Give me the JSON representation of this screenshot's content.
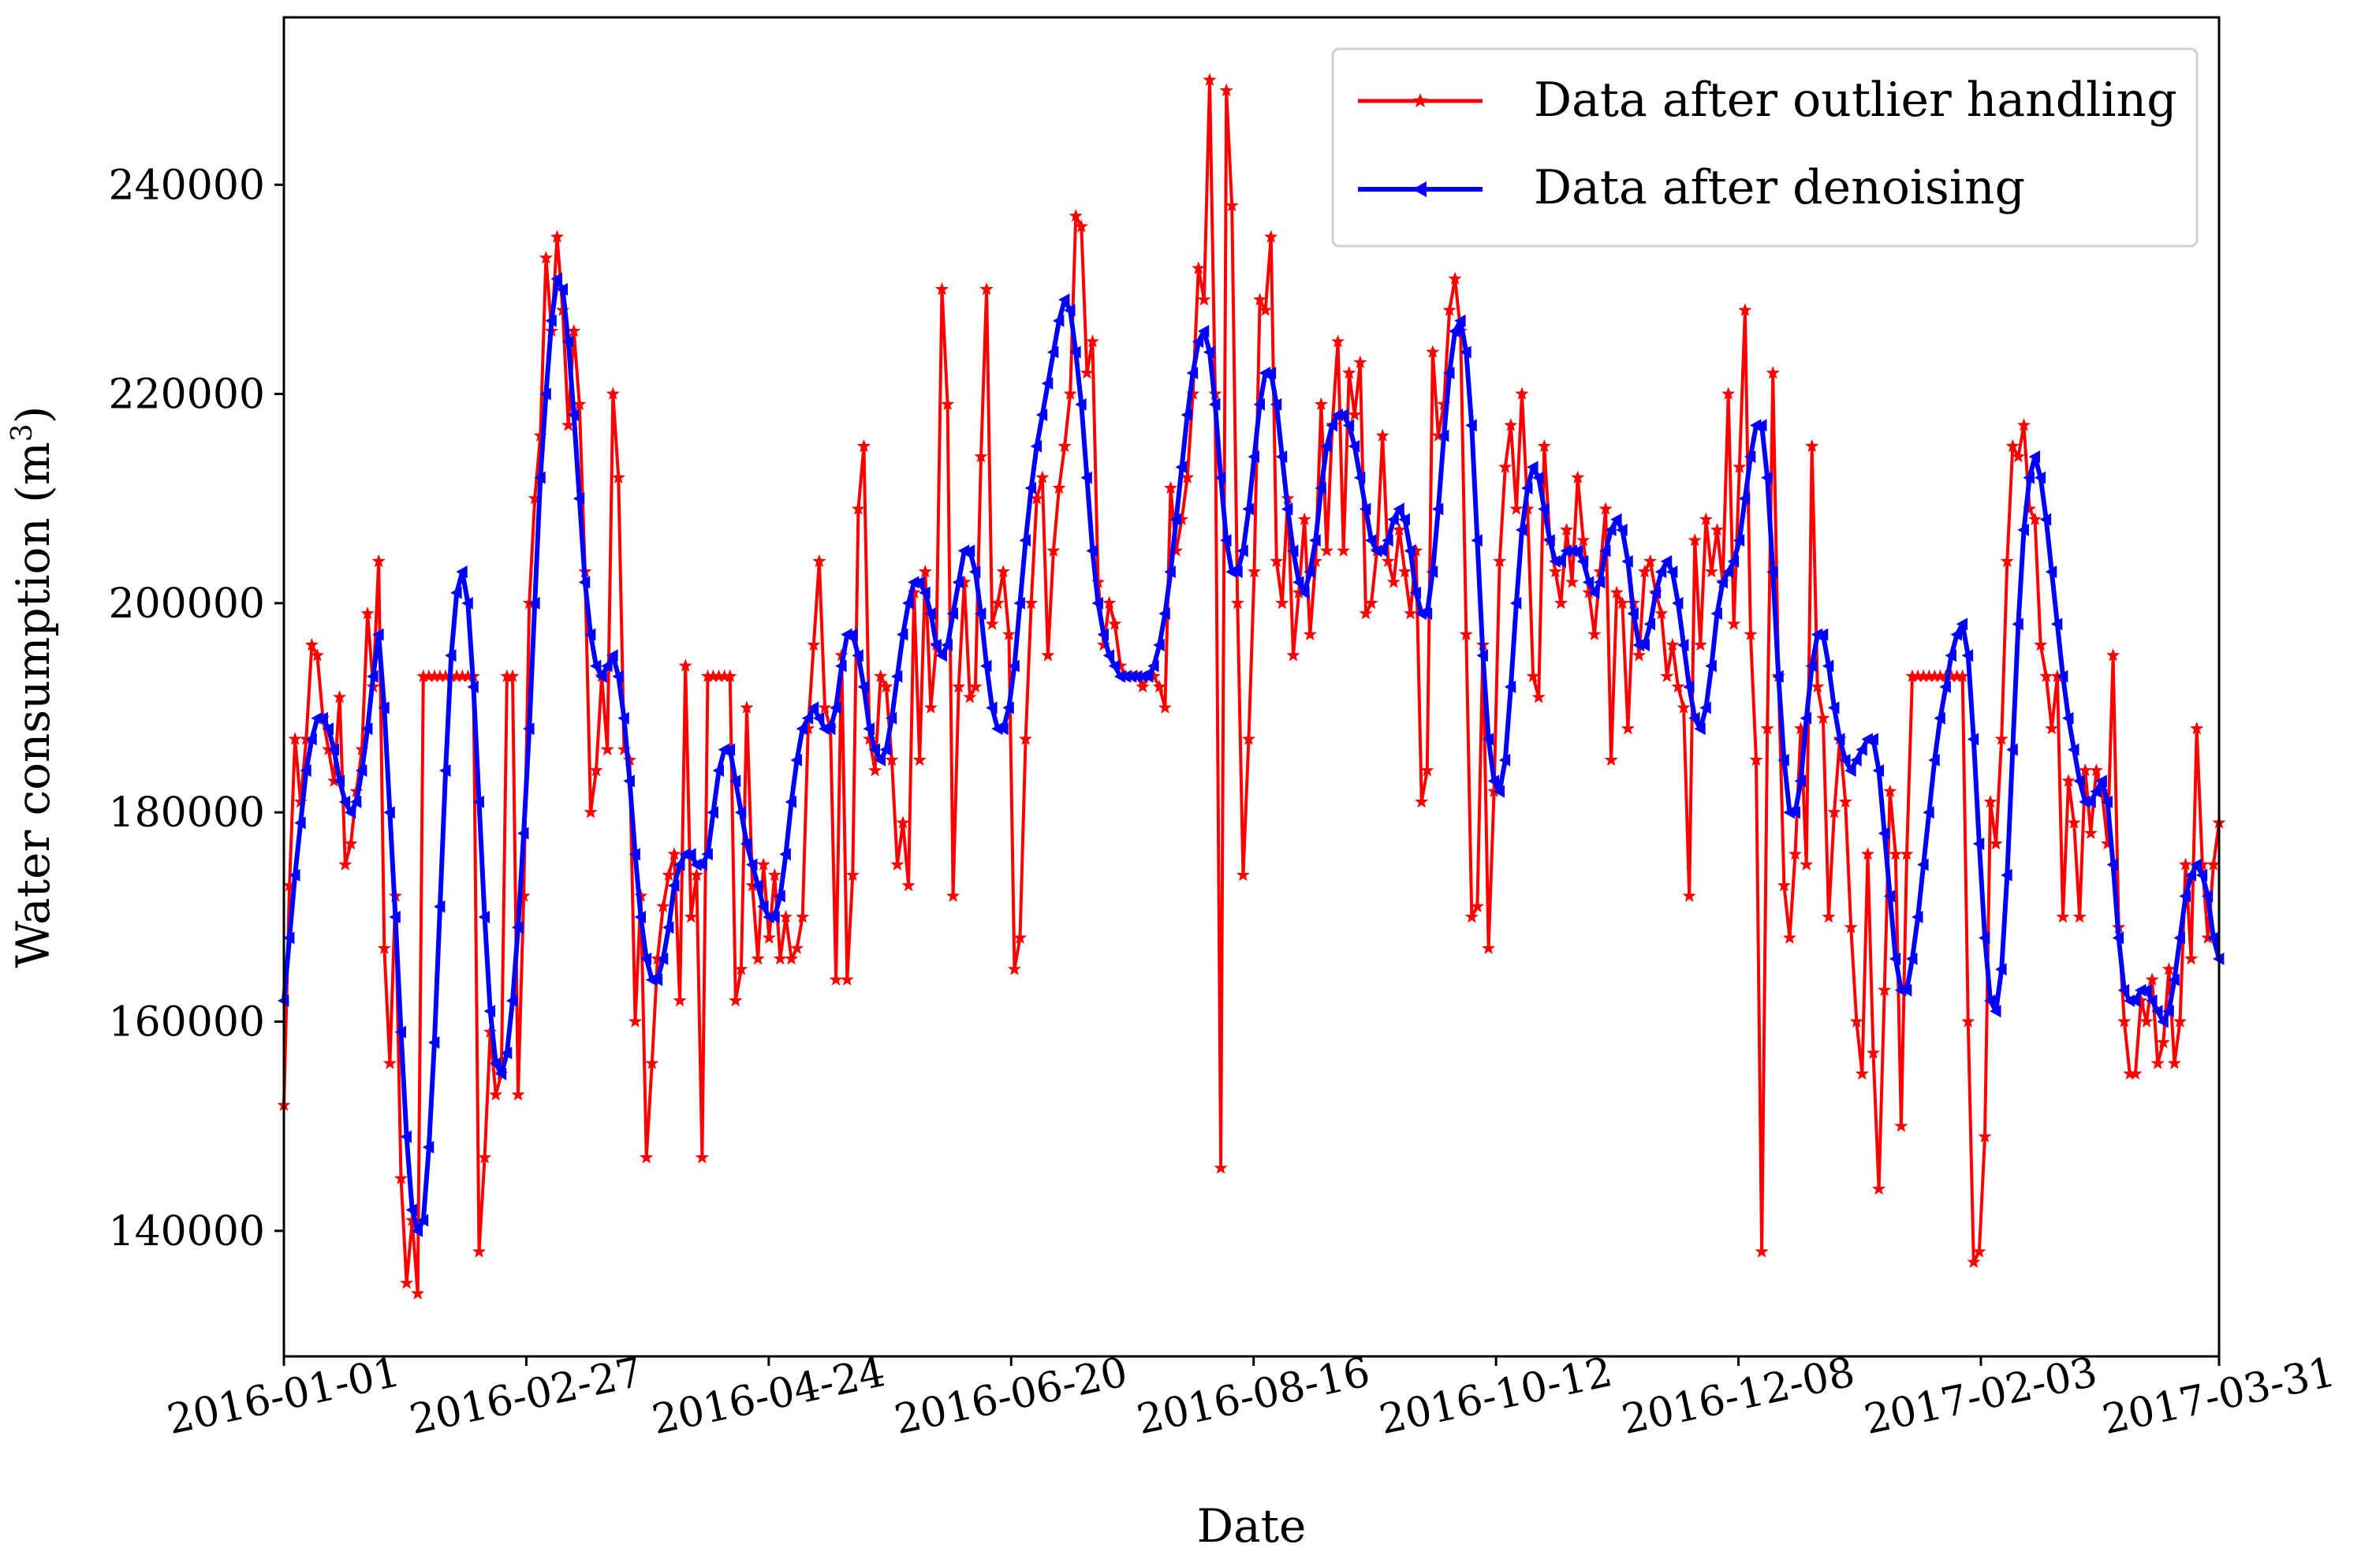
{
  "chart_data": {
    "type": "line",
    "title": "",
    "xlabel": "Date",
    "ylabel": "Water consumption (m³)",
    "ylabel_base": "Water consumption (m",
    "ylabel_sup": "3",
    "ylabel_close": ")",
    "x_start": "2016-01-01",
    "x_end": "2017-03-31",
    "xlim": [
      "2016-01-01",
      "2017-03-31"
    ],
    "ylim": [
      128000,
      256000
    ],
    "x_ticks": [
      "2016-01-01",
      "2016-02-27",
      "2016-04-24",
      "2016-06-20",
      "2016-08-16",
      "2016-10-12",
      "2016-12-08",
      "2017-02-03",
      "2017-03-31"
    ],
    "y_ticks": [
      140000,
      160000,
      180000,
      200000,
      220000,
      240000
    ],
    "y_tick_labels": [
      "140000",
      "160000",
      "180000",
      "200000",
      "220000",
      "240000"
    ],
    "grid": false,
    "legend_position": "top-right",
    "series": [
      {
        "name": "Data after outlier handling",
        "color": "#ff0000",
        "marker": "star",
        "values": [
          152000,
          173000,
          187000,
          181000,
          187000,
          196000,
          195000,
          189000,
          186000,
          183000,
          191000,
          175000,
          177000,
          182000,
          186000,
          199000,
          192000,
          204000,
          167000,
          156000,
          172000,
          145000,
          135000,
          141000,
          134000,
          193000,
          193000,
          193000,
          193000,
          193000,
          193000,
          193000,
          193000,
          193000,
          193000,
          138000,
          147000,
          159000,
          153000,
          155000,
          193000,
          193000,
          153000,
          172000,
          200000,
          210000,
          216000,
          233000,
          226000,
          235000,
          228000,
          217000,
          226000,
          219000,
          203000,
          180000,
          184000,
          193000,
          186000,
          220000,
          212000,
          186000,
          185000,
          160000,
          172000,
          147000,
          156000,
          166000,
          171000,
          174000,
          176000,
          162000,
          194000,
          170000,
          174000,
          147000,
          193000,
          193000,
          193000,
          193000,
          193000,
          162000,
          165000,
          190000,
          173000,
          166000,
          175000,
          168000,
          174000,
          166000,
          170000,
          166000,
          167000,
          170000,
          188000,
          196000,
          204000,
          190000,
          188000,
          164000,
          195000,
          164000,
          174000,
          209000,
          215000,
          187000,
          184000,
          193000,
          192000,
          185000,
          175000,
          179000,
          173000,
          201000,
          185000,
          203000,
          190000,
          196000,
          230000,
          219000,
          172000,
          192000,
          202000,
          191000,
          192000,
          214000,
          230000,
          198000,
          200000,
          203000,
          197000,
          165000,
          168000,
          187000,
          200000,
          210000,
          212000,
          195000,
          205000,
          211000,
          215000,
          220000,
          237000,
          236000,
          222000,
          225000,
          202000,
          196000,
          200000,
          198000,
          194000,
          193000,
          193000,
          193000,
          192000,
          193000,
          193000,
          192000,
          190000,
          211000,
          205000,
          208000,
          212000,
          220000,
          232000,
          229000,
          250000,
          220000,
          146000,
          249000,
          238000,
          200000,
          174000,
          187000,
          203000,
          229000,
          228000,
          235000,
          204000,
          200000,
          210000,
          195000,
          201000,
          208000,
          197000,
          204000,
          219000,
          205000,
          217000,
          225000,
          205000,
          222000,
          218000,
          223000,
          199000,
          200000,
          205000,
          216000,
          204000,
          202000,
          207000,
          203000,
          199000,
          205000,
          181000,
          184000,
          224000,
          216000,
          219000,
          228000,
          231000,
          226000,
          197000,
          170000,
          171000,
          196000,
          167000,
          182000,
          204000,
          213000,
          217000,
          209000,
          220000,
          209000,
          193000,
          191000,
          215000,
          206000,
          203000,
          200000,
          207000,
          202000,
          212000,
          206000,
          201000,
          197000,
          203000,
          209000,
          185000,
          201000,
          200000,
          188000,
          200000,
          195000,
          203000,
          204000,
          201000,
          199000,
          193000,
          196000,
          192000,
          190000,
          172000,
          206000,
          196000,
          208000,
          203000,
          207000,
          202000,
          220000,
          198000,
          213000,
          228000,
          197000,
          185000,
          138000,
          188000,
          222000,
          193000,
          173000,
          168000,
          176000,
          188000,
          175000,
          215000,
          192000,
          189000,
          170000,
          180000,
          187000,
          181000,
          169000,
          160000,
          155000,
          176000,
          157000,
          144000,
          163000,
          182000,
          176000,
          150000,
          176000,
          193000,
          193000,
          193000,
          193000,
          193000,
          193000,
          193000,
          193000,
          193000,
          193000,
          160000,
          137000,
          138000,
          149000,
          181000,
          177000,
          187000,
          204000,
          215000,
          214000,
          217000,
          209000,
          208000,
          196000,
          193000,
          188000,
          193000,
          170000,
          183000,
          179000,
          170000,
          184000,
          178000,
          184000,
          182000,
          177000,
          195000,
          169000,
          160000,
          155000,
          155000,
          162000,
          160000,
          164000,
          156000,
          158000,
          165000,
          156000,
          160000,
          175000,
          166000,
          188000,
          175000,
          168000,
          175000,
          179000
        ]
      },
      {
        "name": "Data after denoising",
        "color": "#0000ff",
        "marker": "triangle-left",
        "values": [
          162000,
          168000,
          174000,
          179000,
          184000,
          187000,
          189000,
          189000,
          188000,
          186000,
          183000,
          181000,
          180000,
          181000,
          184000,
          188000,
          193000,
          197000,
          190000,
          180000,
          170000,
          159000,
          149000,
          142000,
          140000,
          141000,
          148000,
          158000,
          171000,
          184000,
          195000,
          201000,
          203000,
          200000,
          192000,
          181000,
          170000,
          161000,
          156000,
          155000,
          157000,
          162000,
          169000,
          178000,
          188000,
          200000,
          212000,
          220000,
          227000,
          231000,
          230000,
          225000,
          218000,
          210000,
          202000,
          197000,
          194000,
          193000,
          194000,
          195000,
          193000,
          189000,
          183000,
          176000,
          170000,
          166000,
          164000,
          164000,
          166000,
          169000,
          173000,
          175000,
          176000,
          176000,
          175000,
          175000,
          176000,
          180000,
          184000,
          186000,
          186000,
          183000,
          180000,
          177000,
          175000,
          173000,
          171000,
          170000,
          170000,
          172000,
          176000,
          181000,
          185000,
          188000,
          189000,
          190000,
          189000,
          188000,
          188000,
          190000,
          194000,
          197000,
          197000,
          195000,
          192000,
          188000,
          186000,
          185000,
          186000,
          189000,
          193000,
          197000,
          200000,
          202000,
          202000,
          201000,
          199000,
          196000,
          195000,
          196000,
          199000,
          202000,
          205000,
          205000,
          203000,
          199000,
          194000,
          190000,
          188000,
          188000,
          190000,
          194000,
          200000,
          206000,
          211000,
          215000,
          218000,
          221000,
          224000,
          227000,
          229000,
          228000,
          224000,
          219000,
          212000,
          205000,
          200000,
          197000,
          195000,
          194000,
          193000,
          193000,
          193000,
          193000,
          193000,
          193000,
          194000,
          196000,
          199000,
          203000,
          208000,
          213000,
          218000,
          222000,
          225000,
          226000,
          224000,
          219000,
          212000,
          206000,
          203000,
          203000,
          205000,
          209000,
          214000,
          219000,
          222000,
          222000,
          219000,
          214000,
          209000,
          205000,
          202000,
          201000,
          203000,
          206000,
          211000,
          215000,
          217000,
          218000,
          218000,
          217000,
          215000,
          212000,
          209000,
          206000,
          205000,
          205000,
          206000,
          208000,
          209000,
          208000,
          205000,
          201000,
          199000,
          199000,
          203000,
          209000,
          216000,
          222000,
          226000,
          227000,
          224000,
          217000,
          206000,
          195000,
          187000,
          183000,
          182000,
          185000,
          192000,
          200000,
          207000,
          211000,
          213000,
          212000,
          209000,
          206000,
          204000,
          204000,
          205000,
          205000,
          205000,
          204000,
          202000,
          201000,
          202000,
          205000,
          207000,
          208000,
          207000,
          204000,
          199000,
          196000,
          196000,
          198000,
          201000,
          203000,
          204000,
          203000,
          200000,
          196000,
          192000,
          189000,
          188000,
          190000,
          194000,
          199000,
          202000,
          203000,
          204000,
          206000,
          210000,
          214000,
          217000,
          217000,
          212000,
          203000,
          193000,
          185000,
          180000,
          180000,
          183000,
          189000,
          194000,
          197000,
          197000,
          194000,
          190000,
          187000,
          185000,
          184000,
          185000,
          186000,
          187000,
          187000,
          184000,
          178000,
          172000,
          166000,
          163000,
          163000,
          166000,
          170000,
          175000,
          180000,
          185000,
          189000,
          192000,
          195000,
          197000,
          198000,
          195000,
          187000,
          177000,
          168000,
          162000,
          161000,
          165000,
          174000,
          186000,
          198000,
          207000,
          212000,
          214000,
          212000,
          208000,
          203000,
          198000,
          193000,
          189000,
          186000,
          183000,
          181000,
          181000,
          182000,
          183000,
          181000,
          175000,
          168000,
          163000,
          162000,
          162000,
          163000,
          163000,
          162000,
          161000,
          160000,
          161000,
          164000,
          168000,
          172000,
          174000,
          175000,
          174000,
          172000,
          168000,
          166000
        ]
      }
    ]
  }
}
